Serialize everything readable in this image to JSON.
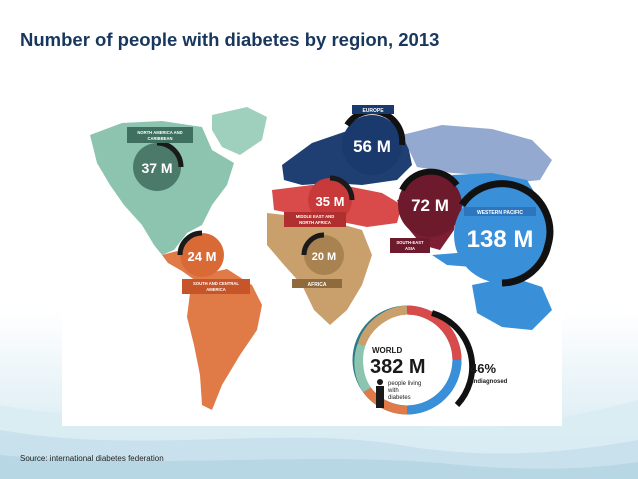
{
  "slide": {
    "title": "Number of people with diabetes by region, 2013",
    "source": "Source: international diabetes federation"
  },
  "colors": {
    "title": "#17375e",
    "nac": "#8cc4b0",
    "saca": "#e07a46",
    "eur": "#1f3f73",
    "mena": "#d94a4a",
    "afr": "#c9a06b",
    "sea": "#7d1e33",
    "wp": "#3a8fd9",
    "background_wave": "#cfe6ef"
  },
  "regions": {
    "nac": {
      "value": "37 M",
      "label_line1": "NORTH AMERICA AND",
      "label_line2": "CARIBBEAN",
      "code": "NAC"
    },
    "saca": {
      "value": "24 M",
      "label_line1": "SOUTH AND CENTRAL",
      "label_line2": "AMERICA",
      "code": "SACA"
    },
    "eur": {
      "value": "56 M",
      "label": "EUROPE",
      "code": "EUR"
    },
    "mena": {
      "value": "35 M",
      "label_line1": "MIDDLE EAST AND",
      "label_line2": "NORTH AFRICA",
      "code": "MENA"
    },
    "afr": {
      "value": "20 M",
      "label": "AFRICA",
      "code": "AFR"
    },
    "sea": {
      "value": "72 M",
      "label_line1": "SOUTH-EAST",
      "label_line2": "ASIA",
      "code": "SEA"
    },
    "wp": {
      "value": "138 M",
      "label": "WESTERN PACIFIC",
      "code": "WP"
    }
  },
  "world": {
    "label": "WORLD",
    "value": "382 M",
    "desc_line1": "people living",
    "desc_line2": "with",
    "desc_line3": "diabetes",
    "undiagnosed_percent": "46%",
    "undiagnosed_label": "undiagnosed"
  }
}
